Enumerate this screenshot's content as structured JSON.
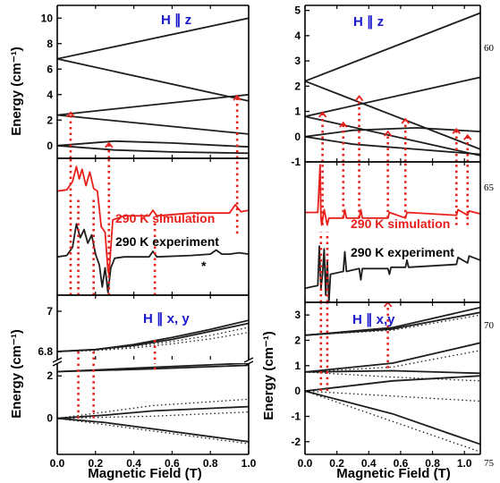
{
  "line_numbers": [
    "60",
    "65",
    "70",
    "75"
  ],
  "colors": {
    "curve": "#1e1e1e",
    "red": "#e8201c",
    "title": "#1a1acc"
  },
  "chart_data": [
    {
      "id": "left-top",
      "type": "line",
      "title": "H ∥ z",
      "xlabel": "",
      "ylabel": "Energy (cm⁻¹)",
      "xlim": [
        0,
        1.0
      ],
      "ylim": [
        -1,
        11
      ],
      "yticks": [
        0,
        2,
        4,
        6,
        8,
        10
      ],
      "xticks": [
        0,
        0.2,
        0.4,
        0.6,
        0.8,
        1.0
      ],
      "series": [
        {
          "x": [
            0,
            1
          ],
          "y": [
            6.8,
            10.0
          ],
          "style": "solid"
        },
        {
          "x": [
            0,
            1
          ],
          "y": [
            6.8,
            3.5
          ],
          "style": "solid"
        },
        {
          "x": [
            0,
            1
          ],
          "y": [
            2.4,
            4.0
          ],
          "style": "solid"
        },
        {
          "x": [
            0,
            1
          ],
          "y": [
            2.4,
            0.9
          ],
          "style": "solid"
        },
        {
          "x": [
            0,
            0.3,
            0.6,
            1
          ],
          "y": [
            0,
            0.35,
            0.2,
            -0.1
          ],
          "style": "solid"
        },
        {
          "x": [
            0,
            0.3,
            0.6,
            1
          ],
          "y": [
            0,
            -0.35,
            -0.5,
            -0.6
          ],
          "style": "solid"
        }
      ],
      "transitions": [
        {
          "x": 0.07,
          "y0": -1,
          "y1": 2.6
        },
        {
          "x": 0.27,
          "y0": -1,
          "y1": 0.2
        },
        {
          "x": 0.94,
          "y0": -1,
          "y1": 3.9
        }
      ]
    },
    {
      "id": "left-mid",
      "type": "line",
      "xlim": [
        0,
        1.0
      ],
      "ylim": [
        0,
        1
      ],
      "annotations": [
        {
          "text": "290 K simulation",
          "color": "#e8201c"
        },
        {
          "text": "290 K experiment",
          "color": "#000000"
        },
        {
          "text": "*",
          "color": "#000000"
        }
      ],
      "series": [
        {
          "name": "290 K simulation",
          "color": "#e8201c",
          "x": [
            0,
            0.05,
            0.08,
            0.1,
            0.115,
            0.13,
            0.15,
            0.17,
            0.19,
            0.21,
            0.23,
            0.25,
            0.265,
            0.27,
            0.29,
            0.35,
            0.48,
            0.5,
            0.52,
            0.7,
            0.9,
            0.93,
            0.96,
            1.0
          ],
          "y": [
            0.76,
            0.77,
            0.83,
            0.94,
            0.85,
            0.92,
            0.8,
            0.9,
            0.78,
            0.76,
            0.5,
            0.46,
            0.18,
            0.15,
            0.55,
            0.58,
            0.58,
            0.62,
            0.58,
            0.6,
            0.6,
            0.66,
            0.61,
            0.62
          ]
        },
        {
          "name": "290 K experiment",
          "color": "#1e1e1e",
          "x": [
            0,
            0.05,
            0.08,
            0.1,
            0.12,
            0.14,
            0.16,
            0.18,
            0.2,
            0.22,
            0.235,
            0.25,
            0.265,
            0.28,
            0.3,
            0.35,
            0.48,
            0.5,
            0.52,
            0.7,
            0.8,
            0.83,
            0.86,
            0.9,
            0.95,
            1.0
          ],
          "y": [
            0.28,
            0.29,
            0.35,
            0.52,
            0.42,
            0.48,
            0.38,
            0.44,
            0.3,
            0.22,
            0.06,
            0.2,
            0.02,
            0.2,
            0.27,
            0.28,
            0.28,
            0.32,
            0.28,
            0.29,
            0.3,
            0.33,
            0.3,
            0.3,
            0.31,
            0.3
          ]
        }
      ],
      "transitions": [
        {
          "x": 0.07,
          "y0": 0,
          "y1": 1
        },
        {
          "x": 0.27,
          "y0": 0,
          "y1": 1
        },
        {
          "x": 0.94,
          "y0": 0.45,
          "y1": 1
        },
        {
          "x": 0.11,
          "y0": 0,
          "y1": 0.72
        },
        {
          "x": 0.19,
          "y0": 0,
          "y1": 0.72
        },
        {
          "x": 0.51,
          "y0": 0,
          "y1": 0.55
        }
      ]
    },
    {
      "id": "left-bot-upper",
      "type": "line",
      "title": "H ∥ x, y",
      "xlim": [
        0,
        1.0
      ],
      "ylim": [
        6.76,
        7.08
      ],
      "yticks": [
        6.8,
        7.0
      ],
      "series": [
        {
          "x": [
            0,
            0.2,
            0.4,
            0.6,
            0.8,
            1.0
          ],
          "y": [
            6.8,
            6.81,
            6.835,
            6.87,
            6.91,
            6.955
          ],
          "style": "solid"
        },
        {
          "x": [
            0,
            0.2,
            0.4,
            0.6,
            0.8,
            1.0
          ],
          "y": [
            6.8,
            6.81,
            6.83,
            6.86,
            6.9,
            6.94
          ],
          "style": "solid"
        },
        {
          "x": [
            0,
            0.2,
            0.4,
            0.6,
            0.8,
            1.0
          ],
          "y": [
            6.8,
            6.807,
            6.825,
            6.85,
            6.88,
            6.92
          ],
          "style": "dotted"
        },
        {
          "x": [
            0,
            0.2,
            0.4,
            0.6,
            0.8,
            1.0
          ],
          "y": [
            6.8,
            6.805,
            6.818,
            6.838,
            6.863,
            6.895
          ],
          "style": "dotted"
        }
      ],
      "transitions": [
        {
          "x": 0.11,
          "y0": 6.76,
          "y1": 6.8
        },
        {
          "x": 0.19,
          "y0": 6.76,
          "y1": 6.8
        },
        {
          "x": 0.51,
          "y0": 6.76,
          "y1": 6.86
        }
      ]
    },
    {
      "id": "left-bot-lower",
      "type": "line",
      "xlabel": "Magnetic Field (T)",
      "ylabel": "Energy (cm⁻¹)",
      "xlim": [
        0,
        1.0
      ],
      "ylim": [
        -1.7,
        2.6
      ],
      "yticks": [
        0,
        2
      ],
      "xticks": [
        0.0,
        0.2,
        0.4,
        0.6,
        0.8,
        1.0
      ],
      "series": [
        {
          "x": [
            0,
            0.5,
            1.0
          ],
          "y": [
            2.2,
            2.4,
            2.6
          ],
          "style": "solid"
        },
        {
          "x": [
            0,
            0.5,
            1.0
          ],
          "y": [
            2.2,
            2.33,
            2.5
          ],
          "style": "solid"
        },
        {
          "x": [
            0,
            0.25,
            0.5,
            0.75,
            1.0
          ],
          "y": [
            0,
            0.15,
            0.35,
            0.45,
            0.55
          ],
          "style": "solid"
        },
        {
          "x": [
            0,
            0.25,
            0.5,
            0.75,
            1.0
          ],
          "y": [
            0,
            -0.2,
            -0.5,
            -0.8,
            -1.1
          ],
          "style": "solid"
        },
        {
          "x": [
            0,
            0.25,
            0.5,
            0.75,
            1.0
          ],
          "y": [
            0,
            0.3,
            0.6,
            0.75,
            0.9
          ],
          "style": "dotted"
        },
        {
          "x": [
            0,
            0.25,
            0.5,
            0.75,
            1.0
          ],
          "y": [
            0,
            -0.3,
            -0.6,
            -0.9,
            -1.2
          ],
          "style": "dotted"
        },
        {
          "x": [
            0,
            0.5,
            1.0
          ],
          "y": [
            0,
            0.1,
            0.3
          ],
          "style": "dotted"
        }
      ],
      "transitions": [
        {
          "x": 0.11,
          "y0": 0,
          "y1": 2.6
        },
        {
          "x": 0.19,
          "y0": 0,
          "y1": 2.6
        },
        {
          "x": 0.51,
          "y0": 2.3,
          "y1": 2.6
        }
      ]
    },
    {
      "id": "right-top",
      "type": "line",
      "title": "H ∥ z",
      "xlim": [
        0,
        1.1
      ],
      "ylim": [
        -1,
        5.2
      ],
      "yticks": [
        -1,
        0,
        1,
        2,
        3,
        4,
        5
      ],
      "xticks": [
        0,
        0.2,
        0.4,
        0.6,
        0.8,
        1.0
      ],
      "series": [
        {
          "x": [
            0,
            1.1
          ],
          "y": [
            2.2,
            4.9
          ],
          "style": "solid"
        },
        {
          "x": [
            0,
            1.1
          ],
          "y": [
            2.2,
            -0.5
          ],
          "style": "solid"
        },
        {
          "x": [
            0,
            1.1
          ],
          "y": [
            0.8,
            2.35
          ],
          "style": "solid"
        },
        {
          "x": [
            0,
            1.1
          ],
          "y": [
            0.8,
            -0.75
          ],
          "style": "solid"
        },
        {
          "x": [
            0,
            0.3,
            0.7,
            1.1
          ],
          "y": [
            0,
            0.25,
            0.35,
            0.2
          ],
          "style": "solid"
        },
        {
          "x": [
            0,
            0.3,
            0.7,
            1.1
          ],
          "y": [
            0,
            -0.3,
            -0.5,
            -0.7
          ],
          "style": "solid"
        }
      ],
      "transitions": [
        {
          "x": 0.11,
          "y0": -1,
          "y1": 0.95
        },
        {
          "x": 0.24,
          "y0": -1,
          "y1": 0.55
        },
        {
          "x": 0.34,
          "y0": -1,
          "y1": 1.6
        },
        {
          "x": 0.52,
          "y0": -1,
          "y1": 0.2
        },
        {
          "x": 0.63,
          "y0": -1,
          "y1": 0.7
        },
        {
          "x": 0.95,
          "y0": -1,
          "y1": 0.3
        },
        {
          "x": 1.02,
          "y0": -1,
          "y1": 0.05
        }
      ]
    },
    {
      "id": "right-mid",
      "type": "line",
      "xlim": [
        0,
        1.1
      ],
      "ylim": [
        0,
        1
      ],
      "annotations": [
        {
          "text": "290 K simulation",
          "color": "#e8201c"
        },
        {
          "text": "290 K experiment",
          "color": "#000000"
        }
      ],
      "series": [
        {
          "name": "290 K simulation",
          "color": "#e8201c",
          "x": [
            0,
            0.08,
            0.095,
            0.1,
            0.105,
            0.12,
            0.14,
            0.15,
            0.18,
            0.24,
            0.25,
            0.26,
            0.34,
            0.35,
            0.36,
            0.52,
            0.53,
            0.63,
            0.64,
            0.95,
            0.96,
            1.02,
            1.03,
            1.1
          ],
          "y": [
            0.64,
            0.64,
            0.98,
            0.6,
            0.55,
            0.66,
            0.55,
            0.6,
            0.6,
            0.6,
            0.66,
            0.6,
            0.6,
            0.66,
            0.6,
            0.6,
            0.64,
            0.6,
            0.64,
            0.62,
            0.66,
            0.62,
            0.65,
            0.63
          ]
        },
        {
          "name": "290 K experiment",
          "color": "#1e1e1e",
          "x": [
            0,
            0.08,
            0.09,
            0.1,
            0.11,
            0.12,
            0.13,
            0.14,
            0.15,
            0.16,
            0.24,
            0.25,
            0.26,
            0.34,
            0.35,
            0.36,
            0.52,
            0.53,
            0.54,
            0.63,
            0.64,
            0.65,
            0.95,
            0.96,
            1.02,
            1.03,
            1.1
          ],
          "y": [
            0.1,
            0.12,
            0.4,
            0.1,
            0.2,
            0.38,
            0.05,
            0.3,
            0.0,
            0.2,
            0.22,
            0.36,
            0.22,
            0.24,
            0.16,
            0.24,
            0.24,
            0.2,
            0.25,
            0.25,
            0.3,
            0.25,
            0.27,
            0.32,
            0.28,
            0.33,
            0.3
          ]
        }
      ],
      "transitions": [
        {
          "x": 0.11,
          "y0": 0.55,
          "y1": 1
        },
        {
          "x": 0.24,
          "y0": 0.6,
          "y1": 1
        },
        {
          "x": 0.34,
          "y0": 0.6,
          "y1": 1
        },
        {
          "x": 0.52,
          "y0": 0.6,
          "y1": 1
        },
        {
          "x": 0.63,
          "y0": 0.6,
          "y1": 1
        },
        {
          "x": 0.95,
          "y0": 0.55,
          "y1": 1
        },
        {
          "x": 1.02,
          "y0": 0.55,
          "y1": 1
        },
        {
          "x": 0.1,
          "y0": 0,
          "y1": 0.5
        },
        {
          "x": 0.14,
          "y0": 0,
          "y1": 0.5
        }
      ]
    },
    {
      "id": "right-bot",
      "type": "line",
      "title": "H ∥ x,y",
      "xlabel": "Magnetic Field (T)",
      "ylabel": "Energy (cm⁻¹)",
      "xlim": [
        0,
        1.1
      ],
      "ylim": [
        -2.5,
        3.5
      ],
      "yticks": [
        -2,
        -1,
        0,
        1,
        2,
        3
      ],
      "xticks": [
        0.0,
        0.2,
        0.4,
        0.6,
        0.8,
        1.0
      ],
      "series": [
        {
          "x": [
            0,
            0.55,
            1.1
          ],
          "y": [
            2.2,
            2.5,
            3.3
          ],
          "style": "solid"
        },
        {
          "x": [
            0,
            0.55,
            1.1
          ],
          "y": [
            2.2,
            2.45,
            3.1
          ],
          "style": "solid"
        },
        {
          "x": [
            0,
            0.55,
            1.1
          ],
          "y": [
            0.75,
            1.1,
            1.9
          ],
          "style": "solid"
        },
        {
          "x": [
            0,
            0.55,
            1.1
          ],
          "y": [
            0.75,
            0.8,
            0.7
          ],
          "style": "solid"
        },
        {
          "x": [
            0,
            0.55,
            1.1
          ],
          "y": [
            0,
            0.4,
            0.6
          ],
          "style": "solid"
        },
        {
          "x": [
            0,
            0.55,
            1.1
          ],
          "y": [
            0,
            -0.9,
            -2.1
          ],
          "style": "solid"
        },
        {
          "x": [
            0,
            0.55,
            1.1
          ],
          "y": [
            2.2,
            2.4,
            3.0
          ],
          "style": "dotted"
        },
        {
          "x": [
            0,
            0.55,
            1.1
          ],
          "y": [
            0.75,
            0.95,
            1.6
          ],
          "style": "dotted"
        },
        {
          "x": [
            0,
            0.55,
            1.1
          ],
          "y": [
            0.75,
            0.55,
            0.4
          ],
          "style": "dotted"
        },
        {
          "x": [
            0,
            0.55,
            1.1
          ],
          "y": [
            0,
            -0.2,
            -0.4
          ],
          "style": "dotted"
        },
        {
          "x": [
            0,
            0.55,
            1.1
          ],
          "y": [
            0,
            -1.2,
            -2.4
          ],
          "style": "dotted"
        }
      ],
      "transitions": [
        {
          "x": 0.1,
          "y0": 0,
          "y1": 3.5
        },
        {
          "x": 0.14,
          "y0": 0,
          "y1": 3.5
        },
        {
          "x": 0.52,
          "y0": 0.9,
          "y1": 3.5
        }
      ]
    }
  ]
}
